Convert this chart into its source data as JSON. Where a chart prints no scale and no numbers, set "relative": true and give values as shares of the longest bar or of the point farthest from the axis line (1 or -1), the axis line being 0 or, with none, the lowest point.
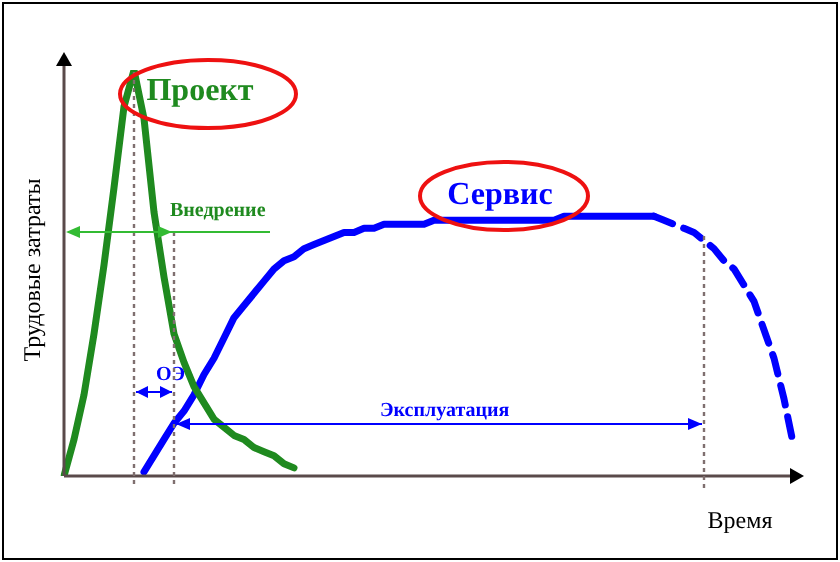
{
  "chart_data": {
    "type": "line",
    "relative": true,
    "xlabel": "Время",
    "ylabel": "Трудовые затраты",
    "categories": [
      null,
      null,
      null,
      null,
      null,
      null,
      null,
      null,
      null,
      null,
      null,
      null,
      null,
      null,
      null,
      null,
      null,
      null,
      null,
      null,
      null,
      null,
      null,
      null,
      null,
      null,
      null,
      null,
      null,
      null,
      null,
      null,
      null,
      null,
      null,
      null,
      null,
      null,
      null,
      null,
      null,
      null,
      null,
      null,
      null,
      null,
      null,
      null,
      null,
      null,
      null,
      null,
      null,
      null,
      null,
      null,
      null,
      null,
      null,
      null,
      null,
      null,
      null,
      null,
      null,
      null,
      null,
      null,
      null,
      null,
      null,
      null,
      null,
      null
    ],
    "series": [
      {
        "name": "Проект",
        "color": "#1f8a1f",
        "values": [
          0,
          0.09,
          0.2,
          0.35,
          0.52,
          0.71,
          0.91,
          1,
          0.88,
          0.65,
          0.49,
          0.35,
          0.28,
          0.22,
          0.18,
          0.14,
          0.12,
          0.1,
          0.09,
          0.07,
          0.06,
          0.05,
          0.03,
          0.02,
          null,
          null,
          null,
          null,
          null,
          null,
          null,
          null,
          null,
          null,
          null,
          null,
          null,
          null,
          null,
          null,
          null,
          null,
          null,
          null,
          null,
          null,
          null,
          null,
          null,
          null,
          null,
          null,
          null,
          null,
          null,
          null,
          null,
          null,
          null,
          null,
          null,
          null,
          null,
          null,
          null,
          null,
          null,
          null,
          null,
          null,
          null,
          null,
          null,
          null
        ]
      },
      {
        "name": "Сервис",
        "color": "#0000ff",
        "values": [
          null,
          null,
          null,
          null,
          null,
          null,
          null,
          null,
          0.01,
          0.05,
          0.09,
          0.13,
          0.16,
          0.2,
          0.25,
          0.29,
          0.34,
          0.39,
          0.42,
          0.45,
          0.48,
          0.51,
          0.53,
          0.54,
          0.56,
          0.57,
          0.58,
          0.59,
          0.6,
          0.6,
          0.61,
          0.61,
          0.62,
          0.62,
          0.62,
          0.62,
          0.62,
          0.63,
          0.63,
          0.63,
          0.63,
          0.63,
          0.63,
          0.63,
          0.63,
          0.63,
          0.63,
          0.63,
          0.63,
          0.63,
          0.64,
          0.64,
          0.64,
          0.64,
          0.64,
          0.64,
          0.64,
          0.64,
          0.64,
          0.64,
          null,
          null,
          null,
          null,
          null,
          null,
          null,
          null,
          null,
          null,
          null,
          null,
          null,
          null
        ]
      },
      {
        "color": "#0000ff",
        "line_style": "dashed",
        "values": [
          null,
          null,
          null,
          null,
          null,
          null,
          null,
          null,
          null,
          null,
          null,
          null,
          null,
          null,
          null,
          null,
          null,
          null,
          null,
          null,
          null,
          null,
          null,
          null,
          null,
          null,
          null,
          null,
          null,
          null,
          null,
          null,
          null,
          null,
          null,
          null,
          null,
          null,
          null,
          null,
          null,
          null,
          null,
          null,
          null,
          null,
          null,
          null,
          null,
          null,
          null,
          null,
          null,
          null,
          null,
          null,
          null,
          null,
          null,
          0.64,
          0.63,
          0.62,
          0.61,
          0.6,
          0.58,
          0.56,
          0.53,
          0.51,
          0.47,
          0.43,
          0.36,
          0.29,
          0.19,
          0.07
        ]
      }
    ],
    "annotations": [
      "Внедрение",
      "ОЭ",
      "Эксплуатация"
    ]
  }
}
